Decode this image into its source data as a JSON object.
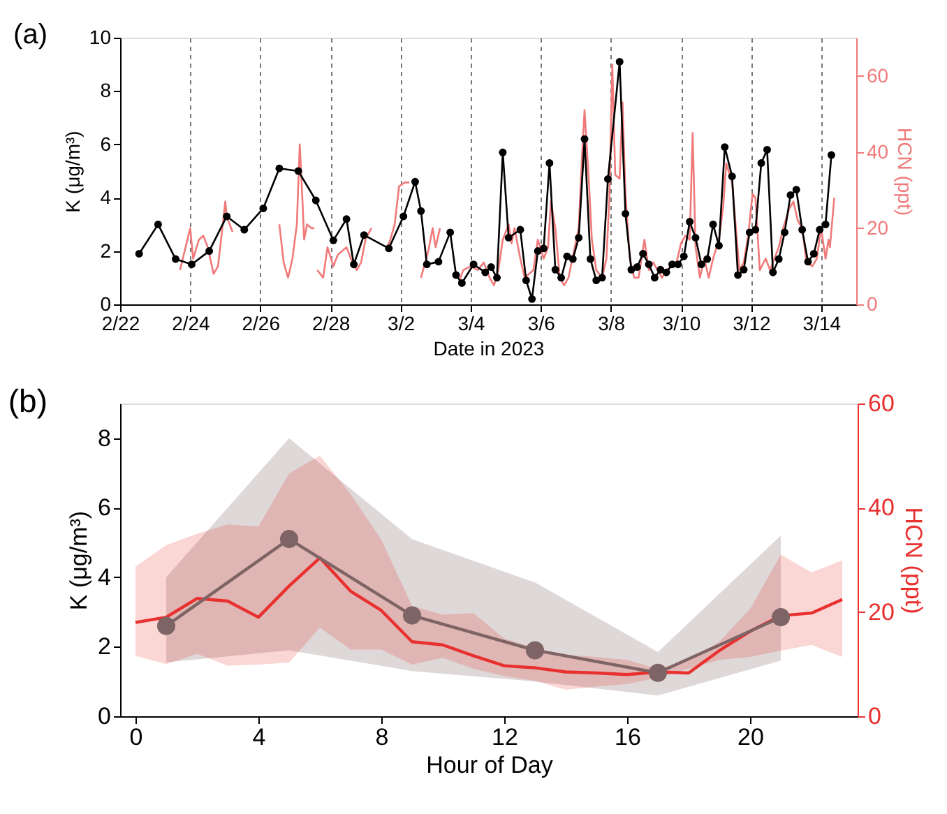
{
  "chart_data": [
    {
      "type": "line",
      "annotations": [
        "(a)"
      ],
      "xlabel": "Date in 2023",
      "ylabel": "K (μg/m³)",
      "y2label": "HCN (ppt)",
      "xlim": [
        "2023-02-22",
        "2023-03-15"
      ],
      "xticks": [
        {
          "value": "2023-02-22",
          "label": "2/22"
        },
        {
          "value": "2023-02-24",
          "label": "2/24"
        },
        {
          "value": "2023-02-26",
          "label": "2/26"
        },
        {
          "value": "2023-02-28",
          "label": "2/28"
        },
        {
          "value": "2023-03-02",
          "label": "3/2"
        },
        {
          "value": "2023-03-04",
          "label": "3/4"
        },
        {
          "value": "2023-03-06",
          "label": "3/6"
        },
        {
          "value": "2023-03-08",
          "label": "3/8"
        },
        {
          "value": "2023-03-10",
          "label": "3/10"
        },
        {
          "value": "2023-03-12",
          "label": "3/12"
        },
        {
          "value": "2023-03-14",
          "label": "3/14"
        }
      ],
      "ylim": [
        0,
        10
      ],
      "yticks": [
        0,
        2,
        4,
        6,
        8,
        10
      ],
      "y2lim": [
        0,
        70
      ],
      "y2ticks": [
        0,
        20,
        40,
        60
      ],
      "grid": "x",
      "series": [
        {
          "color": "#f07a7a",
          "axis": "y2",
          "marker": "none",
          "x": [
            "2023-02-23T17:00",
            "2023-02-24T00:00",
            "2023-02-24T02:00",
            "2023-02-24T06:00",
            "2023-02-24T09:00",
            "2023-02-24T12:00",
            "2023-02-24T16:00",
            "2023-02-24T19:00",
            "2023-02-24T22:00",
            "2023-02-25T00:00",
            "2023-02-25T01:00",
            "2023-02-25T05:00",
            "2023-02-25T20:00",
            "2023-02-26T13:00",
            "2023-02-26T16:00",
            "2023-02-26T19:00",
            "2023-02-26T22:00",
            "2023-02-27T01:00",
            "2023-02-27T03:00",
            "2023-02-27T05:00",
            "2023-02-27T06:00",
            "2023-02-27T08:00",
            "2023-02-27T11:00",
            "2023-02-27T13:00",
            "2023-02-27T14:00",
            "2023-02-27T15:00",
            "2023-02-27T19:00",
            "2023-02-27T22:00",
            "2023-02-28T02:00",
            "2023-02-28T05:00",
            "2023-02-28T08:00",
            "2023-02-28T11:00",
            "2023-02-28T14:00",
            "2023-02-28T18:00",
            "2023-02-28T21:00",
            "2023-03-01T00:00",
            "2023-03-01T04:00",
            "2023-03-01T09:00",
            "2023-03-01T14:00",
            "2023-03-01T17:00",
            "2023-03-01T20:00",
            "2023-03-01T23:00",
            "2023-03-02T03:00",
            "2023-03-02T06:00",
            "2023-03-02T10:00",
            "2023-03-02T14:00",
            "2023-03-02T19:00",
            "2023-03-02T22:00",
            "2023-03-03T00:00",
            "2023-03-03T03:00",
            "2023-03-03T09:00",
            "2023-03-03T16:00",
            "2023-03-03T19:00",
            "2023-03-04T00:00",
            "2023-03-04T05:00",
            "2023-03-04T09:00",
            "2023-03-04T13:00",
            "2023-03-04T16:00",
            "2023-03-04T19:00",
            "2023-03-04T22:00",
            "2023-03-05T02:00",
            "2023-03-05T04:00",
            "2023-03-05T06:00",
            "2023-03-05T10:00",
            "2023-03-05T13:00",
            "2023-03-05T19:00",
            "2023-03-05T22:00",
            "2023-03-06T02:00",
            "2023-03-06T05:00",
            "2023-03-06T07:00",
            "2023-03-06T10:00",
            "2023-03-06T13:00",
            "2023-03-06T16:00",
            "2023-03-06T19:00",
            "2023-03-07T02:00",
            "2023-03-07T04:00",
            "2023-03-07T06:00",
            "2023-03-07T09:00",
            "2023-03-07T11:00",
            "2023-03-07T14:00",
            "2023-03-07T18:00",
            "2023-03-07T21:00",
            "2023-03-07T23:00",
            "2023-03-08T01:00",
            "2023-03-08T03:00",
            "2023-03-08T06:00",
            "2023-03-08T08:00",
            "2023-03-08T10:00",
            "2023-03-08T13:00",
            "2023-03-08T16:00",
            "2023-03-08T19:00",
            "2023-03-08T23:00",
            "2023-03-09T02:00",
            "2023-03-09T05:00",
            "2023-03-09T08:00",
            "2023-03-09T11:00",
            "2023-03-09T14:00",
            "2023-03-09T18:00",
            "2023-03-09T21:00",
            "2023-03-10T00:00",
            "2023-03-10T03:00",
            "2023-03-10T06:00",
            "2023-03-10T08:00",
            "2023-03-10T10:00",
            "2023-03-10T13:00",
            "2023-03-10T16:00",
            "2023-03-10T19:00",
            "2023-03-10T22:00",
            "2023-03-11T02:00",
            "2023-03-11T05:00",
            "2023-03-11T07:00",
            "2023-03-11T11:00",
            "2023-03-11T13:00",
            "2023-03-11T16:00",
            "2023-03-11T19:00",
            "2023-03-11T22:00",
            "2023-03-12T01:00",
            "2023-03-12T03:00",
            "2023-03-12T06:00",
            "2023-03-12T10:00",
            "2023-03-12T13:00",
            "2023-03-12T16:00",
            "2023-03-12T19:00",
            "2023-03-12T22:00",
            "2023-03-13T02:00",
            "2023-03-13T05:00",
            "2023-03-13T08:00",
            "2023-03-13T11:00",
            "2023-03-13T14:00",
            "2023-03-13T18:00",
            "2023-03-13T21:00",
            "2023-03-14T00:00",
            "2023-03-14T03:00",
            "2023-03-14T05:00",
            "2023-03-14T06:00",
            "2023-03-14T09:00"
          ],
          "values": [
            9,
            20,
            12,
            17,
            18,
            15,
            8,
            10,
            20,
            27,
            23,
            19,
            null,
            21,
            11,
            7,
            12,
            21,
            42,
            26,
            17,
            21,
            20,
            20,
            null,
            9,
            7,
            15,
            10,
            13,
            14,
            15,
            12,
            9,
            11,
            17,
            20,
            null,
            14,
            17,
            21,
            31,
            32,
            32,
            null,
            7,
            14,
            20,
            15,
            20,
            null,
            6,
            9,
            10,
            9,
            11,
            7,
            5,
            9,
            17,
            21,
            16,
            20,
            12,
            7,
            9,
            17,
            12,
            15,
            27,
            20,
            7,
            5,
            7,
            20,
            37,
            51,
            32,
            17,
            9,
            7,
            12,
            28,
            63,
            34,
            33,
            53,
            29,
            12,
            7,
            7,
            17,
            9,
            11,
            9,
            7,
            9,
            10,
            11,
            16,
            18,
            17,
            45,
            15,
            7,
            12,
            7,
            12,
            17,
            26,
            37,
            32,
            23,
            9,
            11,
            18,
            29,
            28,
            9,
            12,
            9,
            12,
            15,
            20,
            25,
            27,
            22,
            20,
            11,
            10,
            12,
            20,
            12,
            17,
            15,
            28
          ]
        },
        {
          "color": "#000000",
          "axis": "y",
          "marker": "circle",
          "x": [
            "2023-02-22T13:00",
            "2023-02-23T02:00",
            "2023-02-23T14:00",
            "2023-02-24T01:00",
            "2023-02-24T13:00",
            "2023-02-25T01:00",
            "2023-02-25T13:00",
            "2023-02-26T02:00",
            "2023-02-26T13:00",
            "2023-02-27T02:00",
            "2023-02-27T14:00",
            "2023-02-28T02:00",
            "2023-02-28T11:00",
            "2023-02-28T16:00",
            "2023-02-28T23:00",
            "2023-03-01T16:00",
            "2023-03-02T02:00",
            "2023-03-02T10:00",
            "2023-03-02T14:00",
            "2023-03-02T18:00",
            "2023-03-03T02:00",
            "2023-03-03T10:00",
            "2023-03-03T14:00",
            "2023-03-03T18:00",
            "2023-03-04T02:00",
            "2023-03-04T10:00",
            "2023-03-04T14:00",
            "2023-03-04T18:00",
            "2023-03-04T22:00",
            "2023-03-05T02:00",
            "2023-03-05T10:00",
            "2023-03-05T14:00",
            "2023-03-05T18:00",
            "2023-03-05T22:00",
            "2023-03-06T02:00",
            "2023-03-06T06:00",
            "2023-03-06T10:00",
            "2023-03-06T14:00",
            "2023-03-06T18:00",
            "2023-03-06T22:00",
            "2023-03-07T02:00",
            "2023-03-07T06:00",
            "2023-03-07T10:00",
            "2023-03-07T14:00",
            "2023-03-07T18:00",
            "2023-03-07T22:00",
            "2023-03-08T06:00",
            "2023-03-08T10:00",
            "2023-03-08T14:00",
            "2023-03-08T18:00",
            "2023-03-08T22:00",
            "2023-03-09T02:00",
            "2023-03-09T06:00",
            "2023-03-09T10:00",
            "2023-03-09T14:00",
            "2023-03-09T18:00",
            "2023-03-09T22:00",
            "2023-03-10T02:00",
            "2023-03-10T06:00",
            "2023-03-10T10:00",
            "2023-03-10T14:00",
            "2023-03-10T18:00",
            "2023-03-10T22:00",
            "2023-03-11T02:00",
            "2023-03-11T06:00",
            "2023-03-11T11:00",
            "2023-03-11T15:00",
            "2023-03-11T19:00",
            "2023-03-11T23:00",
            "2023-03-12T03:00",
            "2023-03-12T07:00",
            "2023-03-12T11:00",
            "2023-03-12T15:00",
            "2023-03-12T19:00",
            "2023-03-12T23:00",
            "2023-03-13T03:00",
            "2023-03-13T07:00",
            "2023-03-13T11:00",
            "2023-03-13T15:00",
            "2023-03-13T19:00",
            "2023-03-13T23:00",
            "2023-03-14T03:00",
            "2023-03-14T07:00"
          ],
          "values": [
            1.9,
            3.0,
            1.7,
            1.5,
            2.0,
            3.3,
            2.8,
            3.6,
            5.1,
            5.0,
            3.9,
            2.4,
            3.2,
            1.5,
            2.6,
            2.1,
            3.3,
            4.6,
            3.5,
            1.5,
            1.6,
            2.7,
            1.1,
            0.8,
            1.5,
            1.2,
            1.4,
            1.0,
            5.7,
            2.5,
            2.8,
            0.9,
            0.2,
            2.0,
            2.1,
            5.3,
            1.3,
            1.0,
            1.8,
            1.7,
            2.5,
            6.2,
            1.7,
            0.9,
            1.0,
            4.7,
            9.1,
            3.4,
            1.3,
            1.4,
            1.9,
            1.5,
            1.0,
            1.3,
            1.2,
            1.5,
            1.5,
            1.8,
            3.1,
            2.5,
            1.5,
            1.7,
            3.0,
            2.2,
            5.9,
            4.8,
            1.1,
            1.3,
            2.7,
            2.8,
            5.3,
            5.8,
            1.2,
            1.7,
            2.7,
            4.1,
            4.3,
            2.8,
            1.6,
            1.9,
            2.8,
            3.0,
            5.6
          ]
        }
      ]
    },
    {
      "type": "line",
      "annotations": [
        "(b)"
      ],
      "xlabel": "Hour of Day",
      "ylabel": "K (μg/m³)",
      "y2label": "HCN (ppt)",
      "xlim": [
        -0.5,
        23.5
      ],
      "xticks": [
        0,
        4,
        8,
        12,
        16,
        20
      ],
      "ylim": [
        0,
        9
      ],
      "yticks": [
        0,
        2,
        4,
        6,
        8
      ],
      "y2lim": [
        0,
        60
      ],
      "y2ticks": [
        0,
        20,
        40,
        60
      ],
      "series": [
        {
          "color": "#e8302f",
          "axis": "y2",
          "marker": "none",
          "x": [
            0,
            1,
            2,
            3,
            4,
            5,
            6,
            7,
            8,
            9,
            10,
            11,
            12,
            13,
            14,
            15,
            16,
            17,
            18,
            19,
            20,
            21,
            22,
            23
          ],
          "values": [
            18,
            19,
            22.6,
            22.1,
            19,
            25,
            30.4,
            24,
            20.3,
            14.3,
            13.7,
            11.6,
            9.7,
            9.3,
            8.5,
            8.3,
            8,
            8.5,
            8.3,
            12.6,
            16.3,
            19.3,
            19.8,
            22.4
          ],
          "lower": [
            11.6,
            10,
            12,
            9.7,
            9.9,
            10.3,
            17,
            12.8,
            12.8,
            9.9,
            11.2,
            9.1,
            7.7,
            6.8,
            5.1,
            5.7,
            6.2,
            7.4,
            9.1,
            10.8,
            11.4,
            12.6,
            13.7,
            11.4
          ],
          "upper": [
            28.7,
            32.8,
            35,
            36.8,
            36.4,
            46.6,
            50,
            42.6,
            33.9,
            21.2,
            19.5,
            19.8,
            14.9,
            13.1,
            11.8,
            11.4,
            10.8,
            9.1,
            10.8,
            14.3,
            20.6,
            31,
            27.6,
            29.9
          ]
        },
        {
          "color": "#7e6464",
          "axis": "y",
          "marker": "circle",
          "x": [
            1,
            5,
            9,
            13,
            17,
            21
          ],
          "values": [
            2.6,
            5.1,
            2.9,
            1.9,
            1.25,
            2.85
          ],
          "lower": [
            1.55,
            1.9,
            1.3,
            1.0,
            0.6,
            1.6
          ],
          "upper": [
            4.0,
            8.0,
            5.1,
            3.85,
            1.85,
            5.2
          ]
        }
      ]
    }
  ]
}
